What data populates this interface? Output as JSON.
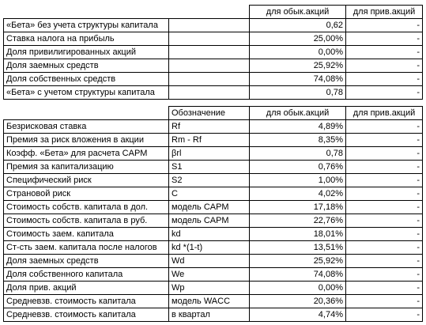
{
  "table1": {
    "headers": [
      "",
      "",
      "для обык.акций",
      "для прив.акций"
    ],
    "rows": [
      {
        "label": "«Бета» без учета структуры капитала",
        "common": "0,62",
        "preferred": "-"
      },
      {
        "label": "Ставка налога на прибыль",
        "common": "25,00%",
        "preferred": "-"
      },
      {
        "label": "Доля привилигированных акций",
        "common": "0,00%",
        "preferred": "-"
      },
      {
        "label": "Доля заемных средств",
        "common": "25,92%",
        "preferred": "-"
      },
      {
        "label": "Доля собственных средств",
        "common": "74,08%",
        "preferred": "-"
      },
      {
        "label": "«Бета» с учетом структуры капитала",
        "common": "0,78",
        "preferred": "-"
      }
    ]
  },
  "table2": {
    "headers": [
      "",
      "Обозначение",
      "для обык.акций",
      "для прив.акций"
    ],
    "rows": [
      {
        "label": "Безрисковая ставка",
        "symbol": "Rf",
        "common": "4,89%",
        "preferred": "-"
      },
      {
        "label": "Премия за риск вложения в акции",
        "symbol": "Rm - Rf",
        "common": "8,35%",
        "preferred": "-"
      },
      {
        "label": "Коэфф. «Бета» для расчета CAPM",
        "symbol": "βrl",
        "common": "0,78",
        "preferred": "-"
      },
      {
        "label": "Премия за капитализацию",
        "symbol": "S1",
        "common": "0,76%",
        "preferred": "-"
      },
      {
        "label": "Специфический риск",
        "symbol": "S2",
        "common": "1,00%",
        "preferred": "-"
      },
      {
        "label": "Страновой риск",
        "symbol": "C",
        "common": "4,02%",
        "preferred": "-"
      },
      {
        "label": "Стоимость собств. капитала в дол.",
        "symbol": "модель CAPM",
        "common": "17,18%",
        "preferred": "-"
      },
      {
        "label": "Стоимость собств. капитала в руб.",
        "symbol": "модель CAPM",
        "common": "22,76%",
        "preferred": "-"
      },
      {
        "label": "Стоимость заем. капитала",
        "symbol": "kd",
        "common": "18,01%",
        "preferred": "-"
      },
      {
        "label": "Ст-сть заем. капитала после налогов",
        "symbol": "kd *(1-t)",
        "common": "13,51%",
        "preferred": "-"
      },
      {
        "label": "Доля заемных средств",
        "symbol": "Wd",
        "common": "25,92%",
        "preferred": "-"
      },
      {
        "label": "Доля собственного капитала",
        "symbol": "We",
        "common": "74,08%",
        "preferred": "-"
      },
      {
        "label": "Доля прив. акций",
        "symbol": "Wp",
        "common": "0,00%",
        "preferred": "-"
      },
      {
        "label": "Средневзв. стоимость капитала",
        "symbol": "модель WACC",
        "common": "20,36%",
        "preferred": "-"
      },
      {
        "label": "Средневзв. стоимость капитала",
        "symbol": "в квартал",
        "common": "4,74%",
        "preferred": "-"
      }
    ]
  }
}
